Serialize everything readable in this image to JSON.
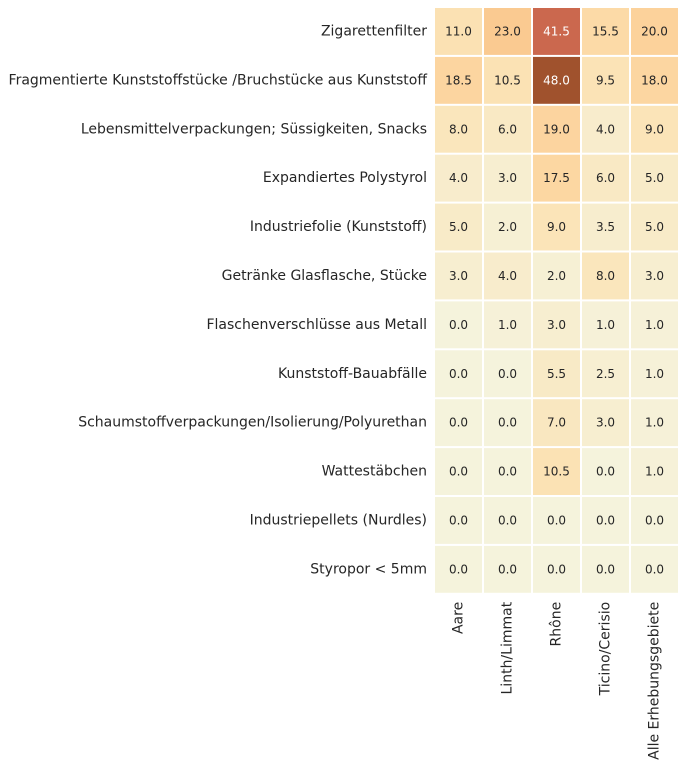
{
  "chart_data": {
    "type": "heatmap",
    "rows": [
      "Zigarettenfilter",
      "Fragmentierte Kunststoffstücke /Bruchstücke aus Kunststoff",
      "Lebensmittelverpackungen; Süssigkeiten, Snacks",
      "Expandiertes Polystyrol",
      "Industriefolie (Kunststoff)",
      "Getränke Glasflasche, Stücke",
      "Flaschenverschlüsse aus Metall",
      "Kunststoff-Bauabfälle",
      "Schaumstoffverpackungen/Isolierung/Polyurethan",
      "Wattestäbchen",
      "Industriepellets (Nurdles)",
      "Styropor < 5mm"
    ],
    "columns": [
      "Aare",
      "Linth/Limmat",
      "Rhône",
      "Ticino/Cerisio",
      "Alle Erhebungsgebiete"
    ],
    "values": [
      [
        11.0,
        23.0,
        41.5,
        15.5,
        20.0
      ],
      [
        18.5,
        10.5,
        48.0,
        9.5,
        18.0
      ],
      [
        8.0,
        6.0,
        19.0,
        4.0,
        9.0
      ],
      [
        4.0,
        3.0,
        17.5,
        6.0,
        5.0
      ],
      [
        5.0,
        2.0,
        9.0,
        3.5,
        5.0
      ],
      [
        3.0,
        4.0,
        2.0,
        8.0,
        3.0
      ],
      [
        0.0,
        1.0,
        3.0,
        1.0,
        1.0
      ],
      [
        0.0,
        0.0,
        5.5,
        2.5,
        1.0
      ],
      [
        0.0,
        0.0,
        7.0,
        3.0,
        1.0
      ],
      [
        0.0,
        0.0,
        10.5,
        0.0,
        1.0
      ],
      [
        0.0,
        0.0,
        0.0,
        0.0,
        0.0
      ],
      [
        0.0,
        0.0,
        0.0,
        0.0,
        0.0
      ]
    ],
    "value_format": "0.0",
    "value_range": [
      0,
      48
    ],
    "colormap": [
      "#f5f3dc",
      "#fbe3b6",
      "#fcd49e",
      "#f8ba7d",
      "#e0735e",
      "#a0522d"
    ],
    "grid_color": "#ffffff",
    "light_text_color": "#ffffff",
    "dark_text_color": "#262626"
  }
}
